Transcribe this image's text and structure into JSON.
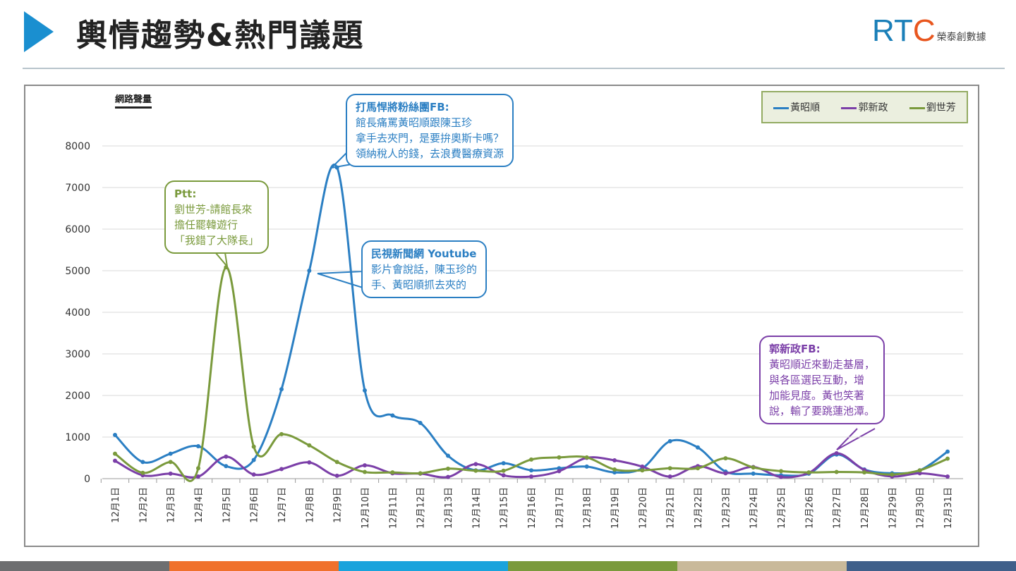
{
  "header": {
    "title": "輿情趨勢&熱門議題",
    "logo_text": "RTC",
    "logo_subtitle": "榮泰創數據"
  },
  "colors": {
    "accent": "#1a8fd0",
    "blue": "#2b7fc3",
    "purple": "#7b3fa8",
    "green": "#7a9a3c"
  },
  "callouts": [
    {
      "title": "打馬悍將粉絲團FB:",
      "lines": [
        "館長痛罵黃昭順跟陳玉珍",
        "拿手去夾門，是要拚奧斯卡嗎？",
        "領納稅人的錢，去浪費醫療資源"
      ]
    },
    {
      "title": "Ptt:",
      "lines": [
        "劉世芳-請館長來",
        "擔任罷韓遊行",
        "「我錯了大隊長」"
      ]
    },
    {
      "title": "民視新聞網 Youtube",
      "lines": [
        "影片會說話，陳玉珍的",
        "手、黃昭順抓去夾的"
      ]
    },
    {
      "title": "郭新政FB:",
      "lines": [
        "黃昭順近來勤走基層，",
        "與各區選民互動，增",
        "加能見度。黃也笑著",
        "說，輸了要跳蓮池潭。"
      ]
    }
  ],
  "chart_data": {
    "type": "line",
    "title": "",
    "ylabel": "網路聲量",
    "xlabel": "",
    "ylim": [
      0,
      8000
    ],
    "yticks": [
      "0",
      "1000",
      "2000",
      "3000",
      "4000",
      "5000",
      "6000",
      "7000",
      "8000"
    ],
    "grid": true,
    "legend_position": "top-right",
    "categories": [
      "12月1日",
      "12月2日",
      "12月3日",
      "12月4日",
      "12月5日",
      "12月6日",
      "12月7日",
      "12月8日",
      "12月9日",
      "12月10日",
      "12月11日",
      "12月12日",
      "12月13日",
      "12月14日",
      "12月15日",
      "12月16日",
      "12月17日",
      "12月18日",
      "12月19日",
      "12月20日",
      "12月21日",
      "12月22日",
      "12月23日",
      "12月24日",
      "12月25日",
      "12月26日",
      "12月27日",
      "12月28日",
      "12月29日",
      "12月30日",
      "12月31日"
    ],
    "series": [
      {
        "name": "黃昭順",
        "color": "#2b7fc3",
        "values": [
          1050,
          400,
          600,
          780,
          300,
          450,
          2150,
          5000,
          7480,
          2120,
          1520,
          1340,
          550,
          200,
          370,
          200,
          250,
          290,
          150,
          250,
          900,
          750,
          170,
          120,
          80,
          120,
          580,
          220,
          130,
          200,
          650
        ]
      },
      {
        "name": "郭新政",
        "color": "#7b3fa8",
        "values": [
          430,
          80,
          120,
          50,
          530,
          100,
          230,
          390,
          70,
          320,
          130,
          120,
          40,
          350,
          80,
          50,
          180,
          500,
          440,
          290,
          50,
          300,
          130,
          280,
          40,
          140,
          610,
          210,
          50,
          130,
          50
        ]
      },
      {
        "name": "劉世芳",
        "color": "#7a9a3c",
        "values": [
          600,
          140,
          400,
          250,
          5080,
          770,
          1070,
          800,
          400,
          160,
          150,
          130,
          240,
          190,
          190,
          460,
          510,
          510,
          220,
          200,
          250,
          250,
          490,
          270,
          180,
          150,
          160,
          150,
          100,
          200,
          480
        ]
      }
    ]
  },
  "footer_colors": [
    "#6d6e70",
    "#f0712c",
    "#1aa3dc",
    "#7a9a3c",
    "#c9b99a",
    "#3f5f8a"
  ]
}
